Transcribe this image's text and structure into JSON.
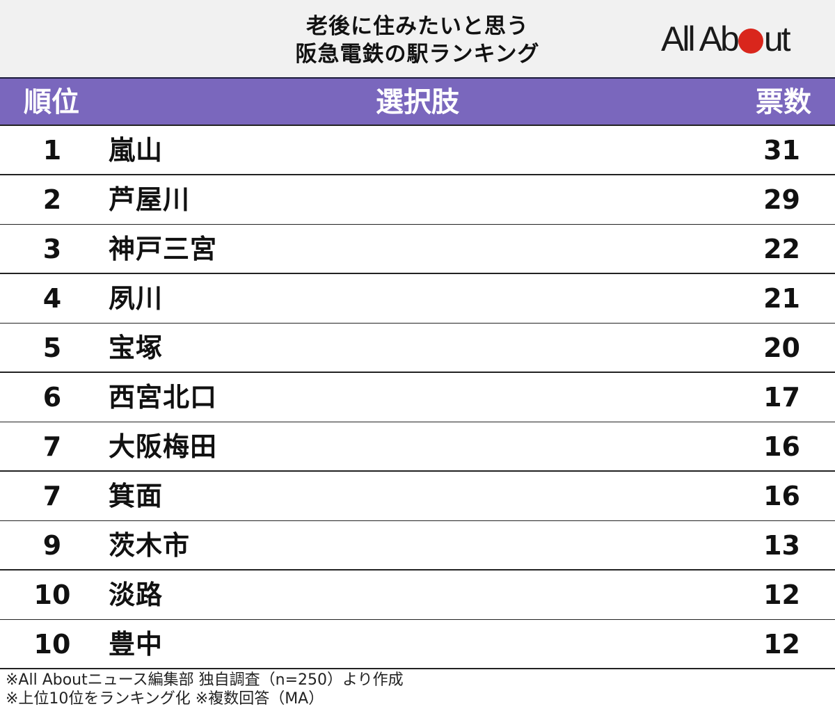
{
  "header": {
    "title_line1": "老後に住みたいと思う",
    "title_line2": "阪急電鉄の駅ランキング",
    "logo": {
      "prefix": "All Ab",
      "suffix": "ut",
      "dot_color": "#d9261c"
    }
  },
  "table": {
    "columns": [
      "順位",
      "選択肢",
      "票数"
    ],
    "header_color": "#7a67bd",
    "rows": [
      {
        "rank": "1",
        "name": "嵐山",
        "votes": "31"
      },
      {
        "rank": "2",
        "name": "芦屋川",
        "votes": "29"
      },
      {
        "rank": "3",
        "name": "神戸三宮",
        "votes": "22"
      },
      {
        "rank": "4",
        "name": "夙川",
        "votes": "21"
      },
      {
        "rank": "5",
        "name": "宝塚",
        "votes": "20"
      },
      {
        "rank": "6",
        "name": "西宮北口",
        "votes": "17"
      },
      {
        "rank": "7",
        "name": "大阪梅田",
        "votes": "16"
      },
      {
        "rank": "7",
        "name": "箕面",
        "votes": "16"
      },
      {
        "rank": "9",
        "name": "茨木市",
        "votes": "13"
      },
      {
        "rank": "10",
        "name": "淡路",
        "votes": "12"
      },
      {
        "rank": "10",
        "name": "豊中",
        "votes": "12"
      }
    ]
  },
  "footer": {
    "note1": "※All Aboutニュース編集部 独自調査（n=250）より作成",
    "note2": "※上位10位をランキング化 ※複数回答（MA）"
  },
  "chart_data": {
    "type": "table",
    "title": "老後に住みたいと思う阪急電鉄の駅ランキング",
    "columns": [
      "順位",
      "選択肢",
      "票数"
    ],
    "categories": [
      "嵐山",
      "芦屋川",
      "神戸三宮",
      "夙川",
      "宝塚",
      "西宮北口",
      "大阪梅田",
      "箕面",
      "茨木市",
      "淡路",
      "豊中"
    ],
    "ranks": [
      1,
      2,
      3,
      4,
      5,
      6,
      7,
      7,
      9,
      10,
      10
    ],
    "values": [
      31,
      29,
      22,
      21,
      20,
      17,
      16,
      16,
      13,
      12,
      12
    ],
    "annotations": [
      "※All Aboutニュース編集部 独自調査（n=250）より作成",
      "※上位10位をランキング化 ※複数回答（MA）"
    ]
  }
}
